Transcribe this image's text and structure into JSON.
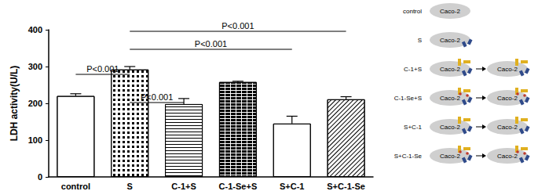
{
  "chart_data": {
    "type": "bar",
    "ylabel": "LDH activity(U/L)",
    "categories": [
      "control",
      "S",
      "C-1+S",
      "C-1-Se+S",
      "S+C-1",
      "S+C-1-Se"
    ],
    "values": [
      220,
      292,
      198,
      258,
      145,
      211
    ],
    "errors": [
      6,
      8,
      15,
      2,
      20,
      7
    ],
    "color": "#000000",
    "ylim": [
      0,
      400
    ],
    "yticks": [
      0,
      100,
      200,
      300,
      400
    ],
    "grid": false,
    "comparisons": [
      {
        "from": "S",
        "to": "C-1+S",
        "label": "P<0.001"
      },
      {
        "from": "control",
        "to": "S",
        "label": "P<0.001"
      },
      {
        "from": "S",
        "to": "S+C-1",
        "label": "P<0.001"
      },
      {
        "from": "S",
        "to": "S+C-1-Se",
        "label": "P<0.001"
      }
    ]
  },
  "diagram": {
    "rows": [
      {
        "label": "control",
        "cells": [
          "Caco-2"
        ]
      },
      {
        "label": "S",
        "cells": [
          "Caco-2"
        ]
      },
      {
        "label": "C-1+S",
        "cells": [
          "Caco-2",
          "Caco-2"
        ]
      },
      {
        "label": "C-1-Se+S",
        "cells": [
          "Caco-2",
          "Caco-2"
        ]
      },
      {
        "label": "S+C-1",
        "cells": [
          "Caco-2",
          "Caco-2"
        ]
      },
      {
        "label": "S+C-1-Se",
        "cells": [
          "Caco-2",
          "Caco-2"
        ]
      }
    ]
  }
}
